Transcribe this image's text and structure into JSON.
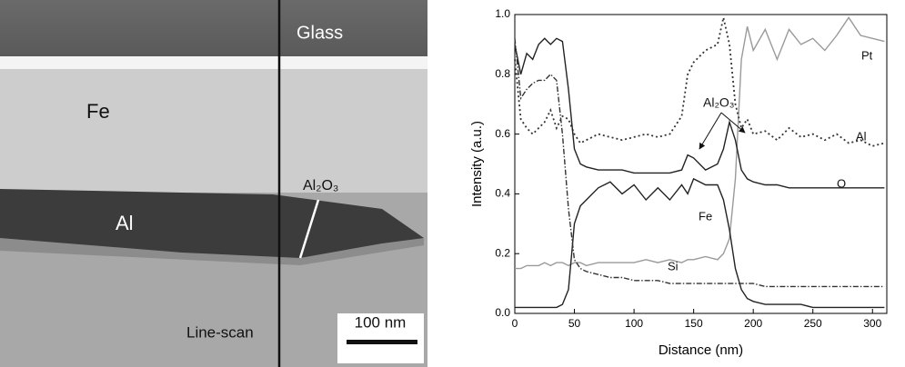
{
  "image": {
    "labels": {
      "glass": "Glass",
      "fe": "Fe",
      "al2o3": "Al₂O₃",
      "al": "Al",
      "line_scan": "Line-scan",
      "scale_bar": "100 nm"
    }
  },
  "chart_data": {
    "type": "line",
    "x_label": "Distance (nm)",
    "y_label": "Intensity (a.u.)",
    "x": [
      0,
      5,
      10,
      15,
      20,
      25,
      30,
      35,
      40,
      45,
      50,
      55,
      60,
      70,
      80,
      90,
      100,
      110,
      120,
      130,
      140,
      145,
      150,
      160,
      170,
      175,
      180,
      185,
      190,
      195,
      200,
      210,
      220,
      230,
      240,
      250,
      260,
      270,
      280,
      290,
      300,
      310
    ],
    "series": [
      {
        "name": "Pt",
        "color": "#9a9a9a",
        "dash": "solid",
        "values": [
          0.15,
          0.15,
          0.16,
          0.16,
          0.16,
          0.17,
          0.16,
          0.17,
          0.17,
          0.16,
          0.17,
          0.17,
          0.16,
          0.17,
          0.17,
          0.17,
          0.17,
          0.18,
          0.17,
          0.18,
          0.17,
          0.18,
          0.18,
          0.19,
          0.18,
          0.2,
          0.25,
          0.45,
          0.85,
          0.96,
          0.88,
          0.95,
          0.85,
          0.95,
          0.9,
          0.92,
          0.88,
          0.93,
          0.99,
          0.93,
          0.92,
          0.91
        ]
      },
      {
        "name": "Al",
        "color": "#333333",
        "dash": "dotted",
        "values": [
          0.85,
          0.65,
          0.62,
          0.6,
          0.62,
          0.64,
          0.68,
          0.62,
          0.66,
          0.65,
          0.6,
          0.57,
          0.58,
          0.6,
          0.59,
          0.58,
          0.59,
          0.6,
          0.59,
          0.6,
          0.66,
          0.8,
          0.84,
          0.88,
          0.9,
          0.99,
          0.9,
          0.7,
          0.62,
          0.65,
          0.6,
          0.61,
          0.58,
          0.62,
          0.59,
          0.6,
          0.58,
          0.6,
          0.57,
          0.58,
          0.56,
          0.57
        ]
      },
      {
        "name": "O",
        "color": "#222222",
        "dash": "solid",
        "values": [
          0.9,
          0.8,
          0.87,
          0.85,
          0.9,
          0.92,
          0.9,
          0.92,
          0.91,
          0.75,
          0.55,
          0.5,
          0.49,
          0.48,
          0.48,
          0.48,
          0.47,
          0.47,
          0.47,
          0.47,
          0.48,
          0.53,
          0.52,
          0.48,
          0.5,
          0.55,
          0.64,
          0.58,
          0.48,
          0.45,
          0.44,
          0.43,
          0.43,
          0.42,
          0.42,
          0.42,
          0.42,
          0.42,
          0.42,
          0.42,
          0.42,
          0.42
        ]
      },
      {
        "name": "Fe",
        "color": "#222222",
        "dash": "solid",
        "values": [
          0.02,
          0.02,
          0.02,
          0.02,
          0.02,
          0.02,
          0.02,
          0.02,
          0.03,
          0.08,
          0.3,
          0.36,
          0.38,
          0.42,
          0.44,
          0.4,
          0.43,
          0.38,
          0.42,
          0.38,
          0.43,
          0.4,
          0.45,
          0.43,
          0.43,
          0.38,
          0.28,
          0.15,
          0.08,
          0.05,
          0.04,
          0.03,
          0.03,
          0.03,
          0.03,
          0.02,
          0.02,
          0.02,
          0.02,
          0.02,
          0.02,
          0.02
        ]
      },
      {
        "name": "Si",
        "color": "#333333",
        "dash": "dashdot",
        "values": [
          0.92,
          0.72,
          0.75,
          0.77,
          0.78,
          0.78,
          0.8,
          0.78,
          0.6,
          0.35,
          0.18,
          0.15,
          0.14,
          0.13,
          0.12,
          0.12,
          0.11,
          0.11,
          0.11,
          0.1,
          0.1,
          0.1,
          0.1,
          0.1,
          0.1,
          0.1,
          0.1,
          0.1,
          0.1,
          0.1,
          0.1,
          0.09,
          0.09,
          0.09,
          0.09,
          0.09,
          0.09,
          0.09,
          0.09,
          0.09,
          0.09,
          0.09
        ]
      }
    ],
    "annotation": "Al₂O₃",
    "xlim": [
      0,
      312
    ],
    "ylim": [
      0,
      1
    ],
    "xticks": [
      0,
      50,
      100,
      150,
      200,
      250,
      300
    ],
    "yticks": [
      {
        "value": 0,
        "label": "0.0"
      },
      {
        "value": 0.2,
        "label": "0.2"
      },
      {
        "value": 0.4,
        "label": "0.4"
      },
      {
        "value": 0.6,
        "label": "0.6"
      },
      {
        "value": 0.8,
        "label": "0.8"
      },
      {
        "value": 1,
        "label": "1.0"
      }
    ]
  }
}
